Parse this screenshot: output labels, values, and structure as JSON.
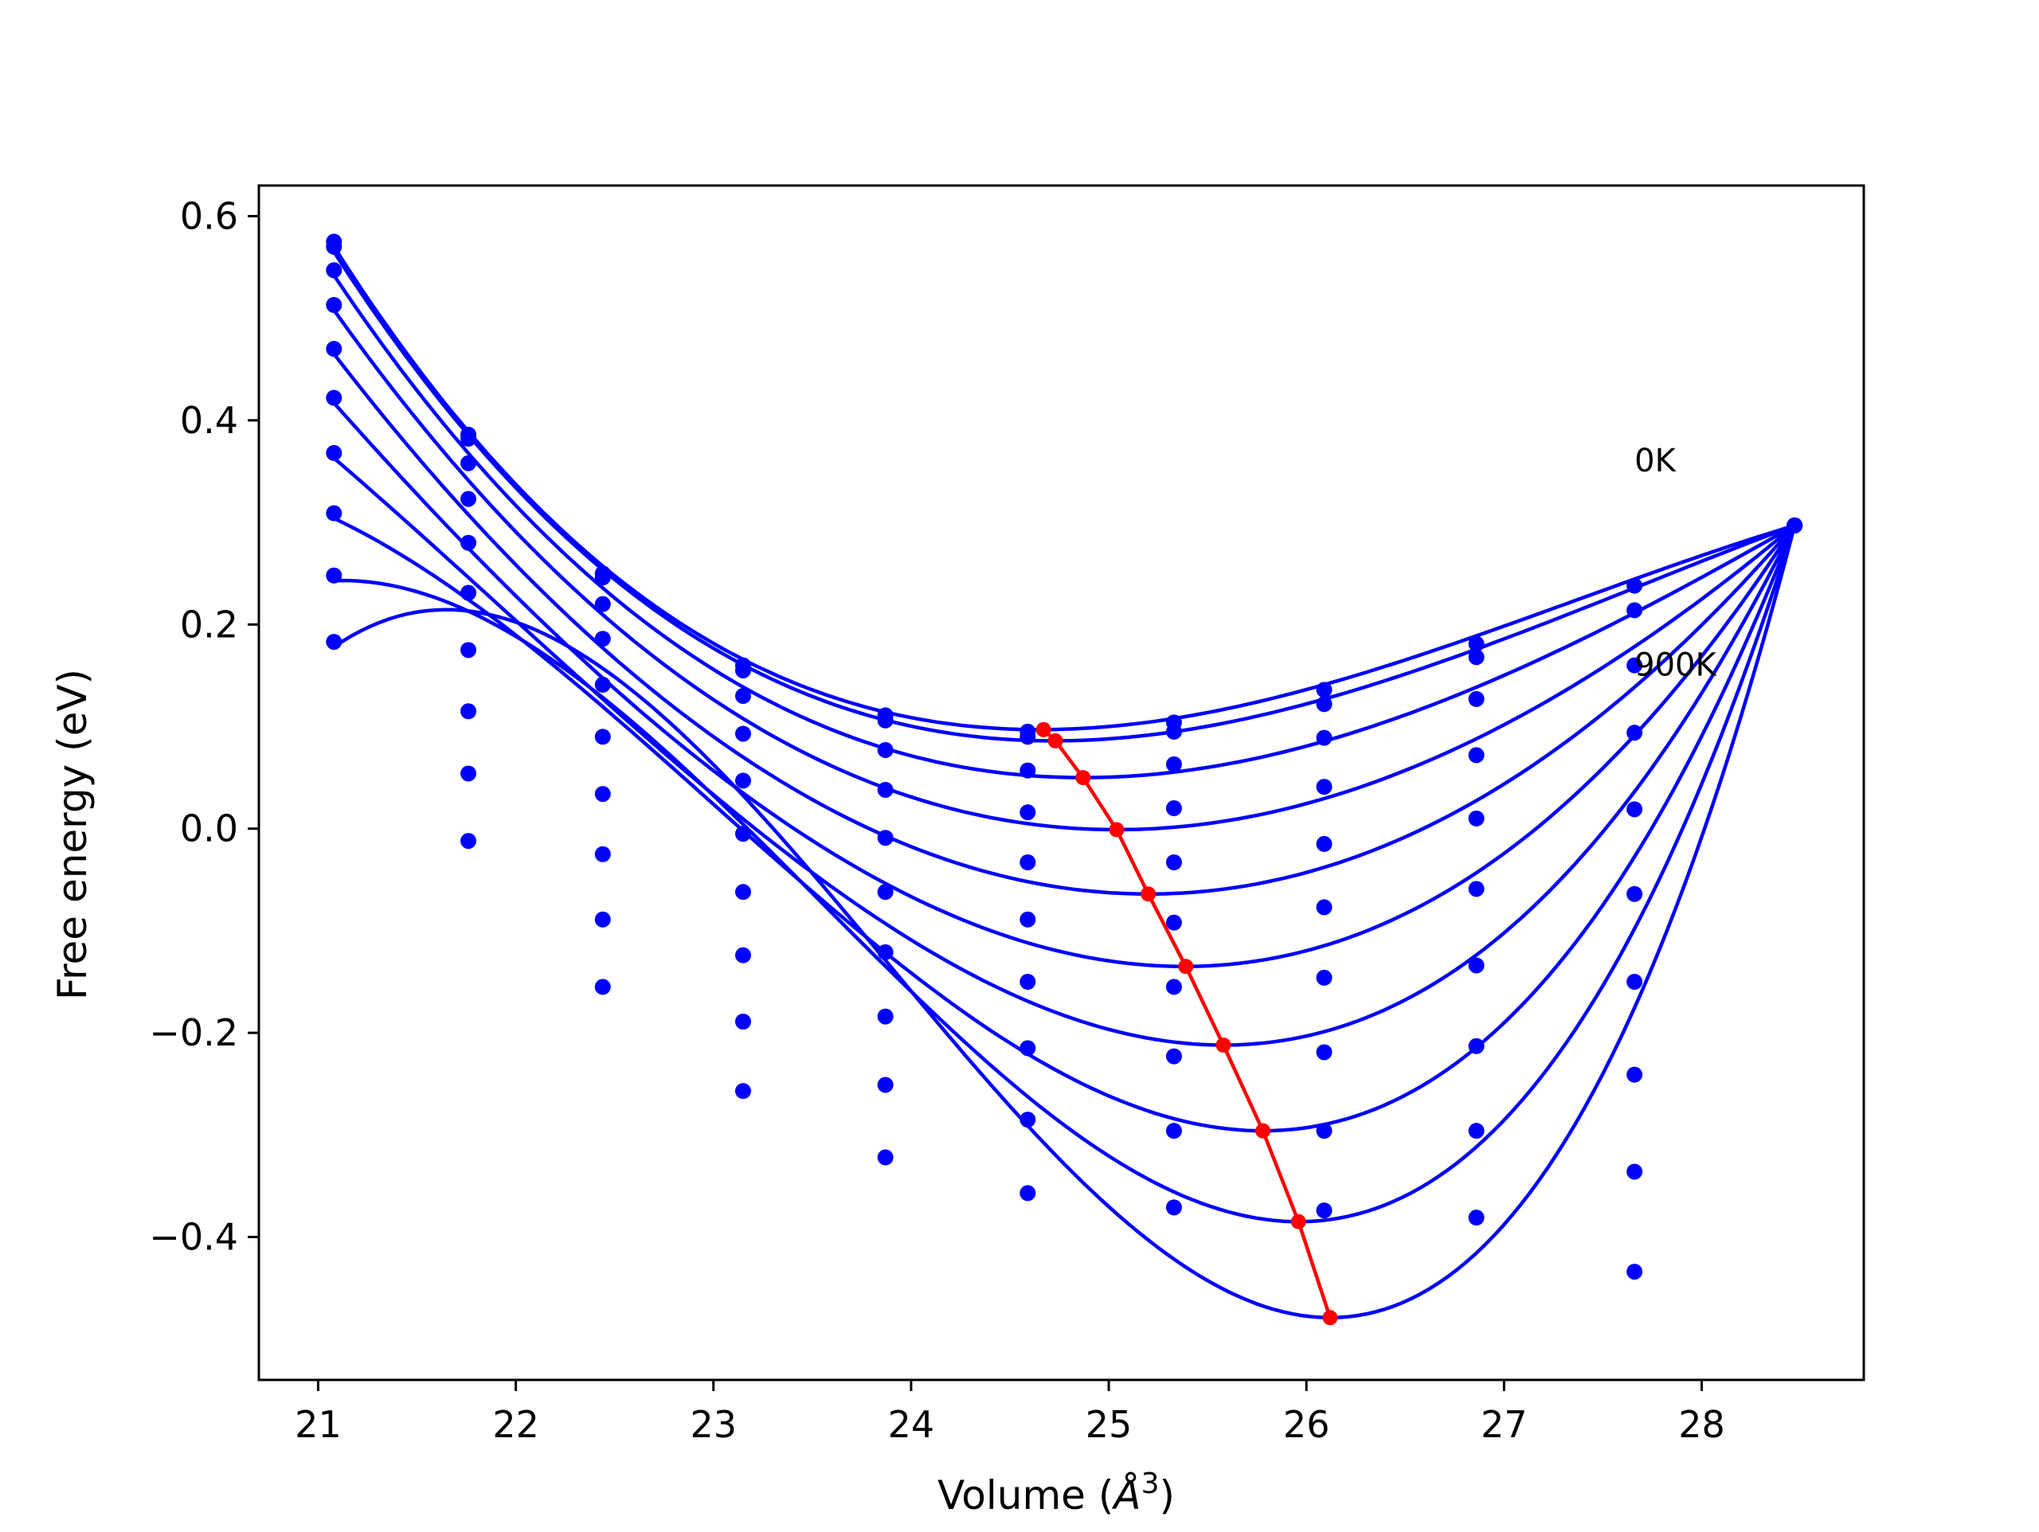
{
  "chart_data": {
    "type": "scatter",
    "title": "",
    "xlabel": "Volume (",
    "xlabel_symbol": "Å",
    "xlabel_exponent": "3",
    "xlabel_close": ")",
    "ylabel": "Free energy (eV)",
    "xlim": [
      20.7,
      28.82
    ],
    "ylim": [
      -0.54,
      0.63
    ],
    "x_ticks": [
      21,
      22,
      23,
      24,
      25,
      26,
      27,
      28
    ],
    "x_tick_labels": [
      "21",
      "22",
      "23",
      "24",
      "25",
      "26",
      "27",
      "28"
    ],
    "y_ticks": [
      -0.4,
      -0.2,
      0.0,
      0.2,
      0.4,
      0.6
    ],
    "y_tick_labels": [
      "−0.4",
      "−0.2",
      "0.0",
      "0.2",
      "0.4",
      "0.6"
    ],
    "grid": false,
    "legend": "none",
    "annotations": [
      {
        "text": "0K",
        "x": 27.66,
        "y": 0.35
      },
      {
        "text": "900K",
        "x": 27.66,
        "y": 0.15
      }
    ],
    "point_color": "#0000ff",
    "curve_color": "#0000ff",
    "minima_color": "#ff0000",
    "x": [
      21.08,
      21.76,
      22.44,
      23.15,
      23.87,
      24.59,
      25.33,
      26.09,
      26.86,
      27.66,
      28.47
    ],
    "series": [
      {
        "values": [
          0.575,
          0.386,
          0.25,
          0.16,
          0.111,
          0.095,
          0.104,
          0.136,
          0.181,
          0.238,
          0.297
        ]
      },
      {
        "values": [
          0.57,
          0.382,
          0.246,
          0.155,
          0.106,
          0.09,
          0.095,
          0.122,
          0.168,
          0.214,
          0.297
        ]
      },
      {
        "values": [
          0.547,
          0.358,
          0.22,
          0.13,
          0.077,
          0.057,
          0.063,
          0.089,
          0.127,
          0.16,
          0.297
        ]
      },
      {
        "values": [
          0.513,
          0.323,
          0.186,
          0.093,
          0.038,
          0.016,
          0.02,
          0.041,
          0.072,
          0.094,
          0.297
        ]
      },
      {
        "values": [
          0.47,
          0.28,
          0.141,
          0.047,
          -0.009,
          -0.033,
          -0.033,
          -0.015,
          0.01,
          0.019,
          0.297
        ]
      },
      {
        "values": [
          0.422,
          0.231,
          0.09,
          -0.005,
          -0.062,
          -0.089,
          -0.092,
          -0.077,
          -0.059,
          -0.064,
          0.297
        ]
      },
      {
        "values": [
          0.368,
          0.175,
          0.034,
          -0.062,
          -0.121,
          -0.15,
          -0.155,
          -0.146,
          -0.134,
          -0.15,
          0.297
        ]
      },
      {
        "values": [
          0.309,
          0.115,
          -0.025,
          -0.124,
          -0.184,
          -0.215,
          -0.223,
          -0.219,
          -0.213,
          -0.241,
          0.297
        ]
      },
      {
        "values": [
          0.248,
          0.054,
          -0.089,
          -0.189,
          -0.251,
          -0.285,
          -0.296,
          -0.296,
          -0.296,
          -0.336,
          0.297
        ]
      },
      {
        "values": [
          0.183,
          -0.012,
          -0.155,
          -0.257,
          -0.322,
          -0.357,
          -0.371,
          -0.374,
          -0.381,
          -0.434,
          0.297
        ]
      }
    ],
    "fits": [
      {
        "v0": 24.65,
        "e0": 0.097
      },
      {
        "v0": 24.72,
        "e0": 0.086
      },
      {
        "v0": 24.87,
        "e0": 0.05
      },
      {
        "v0": 25.04,
        "e0": -0.001
      },
      {
        "v0": 25.2,
        "e0": -0.064
      },
      {
        "v0": 25.38,
        "e0": -0.135
      },
      {
        "v0": 25.58,
        "e0": -0.212
      },
      {
        "v0": 25.78,
        "e0": -0.296
      },
      {
        "v0": 25.96,
        "e0": -0.385
      },
      {
        "v0": 26.12,
        "e0": -0.479
      }
    ],
    "minima_line": {
      "x": [
        24.67,
        24.73,
        24.87,
        25.04,
        25.2,
        25.39,
        25.58,
        25.78,
        25.96,
        26.12
      ],
      "y": [
        0.097,
        0.086,
        0.05,
        -0.001,
        -0.064,
        -0.135,
        -0.212,
        -0.296,
        -0.385,
        -0.479
      ]
    }
  }
}
